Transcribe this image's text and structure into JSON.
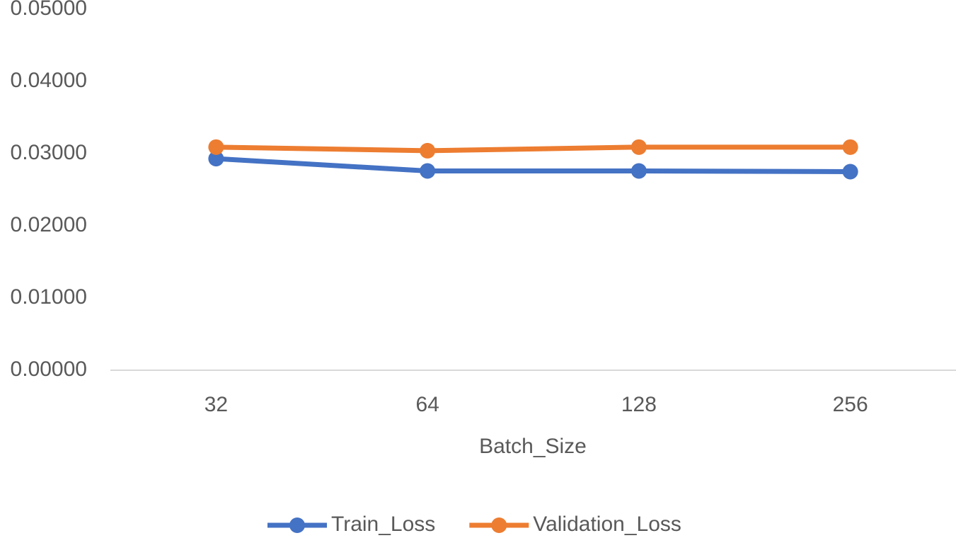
{
  "chart_data": {
    "type": "line",
    "x_label": "Batch_Size",
    "categories": [
      "32",
      "64",
      "128",
      "256"
    ],
    "series": [
      {
        "name": "Train_Loss",
        "color": "#4472c4",
        "values": [
          0.0293,
          0.0276,
          0.0276,
          0.0275
        ]
      },
      {
        "name": "Validation_Loss",
        "color": "#ed7d31",
        "values": [
          0.0309,
          0.0304,
          0.0309,
          0.0309
        ]
      }
    ],
    "ylim": [
      0,
      0.05
    ],
    "yticks": [
      {
        "value": 0,
        "label": "0.00000"
      },
      {
        "value": 0.01,
        "label": "0.01000"
      },
      {
        "value": 0.02,
        "label": "0.02000"
      },
      {
        "value": 0.03,
        "label": "0.03000"
      },
      {
        "value": 0.04,
        "label": "0.04000"
      },
      {
        "value": 0.05,
        "label": "0.05000"
      }
    ],
    "grid": false,
    "legend": "bottom"
  }
}
